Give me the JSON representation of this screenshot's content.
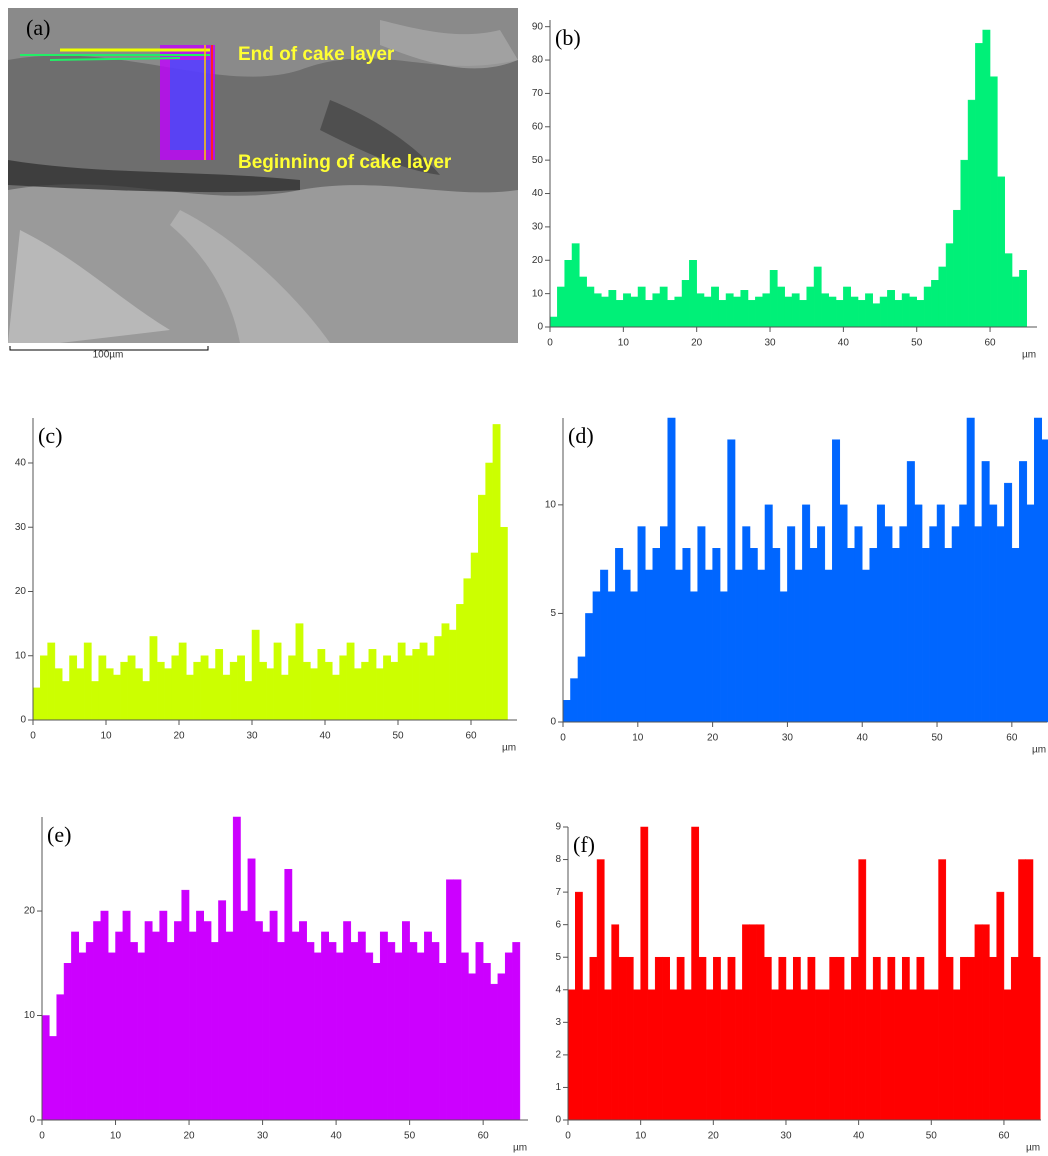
{
  "micrograph": {
    "label": "(a)",
    "annotations": [
      "End of cake layer",
      "Beginning of cake layer"
    ],
    "scale_bar": "100µm"
  },
  "chart_data": [
    {
      "type": "histogram",
      "title": "(b)",
      "x_label": "µm",
      "color": "#00f078",
      "bins": [
        0,
        1,
        2,
        3,
        4,
        5,
        6,
        7,
        8,
        9,
        10,
        11,
        12,
        13,
        14,
        15,
        16,
        17,
        18,
        19,
        20,
        21,
        22,
        23,
        24,
        25,
        26,
        27,
        28,
        29,
        30,
        31,
        32,
        33,
        34,
        35,
        36,
        37,
        38,
        39,
        40,
        41,
        42,
        43,
        44,
        45,
        46,
        47,
        48,
        49,
        50,
        51,
        52,
        53,
        54,
        55,
        56,
        57,
        58,
        59,
        60,
        61,
        62,
        63,
        64,
        65
      ],
      "values": [
        3,
        12,
        20,
        25,
        15,
        12,
        10,
        9,
        11,
        8,
        10,
        9,
        12,
        8,
        10,
        12,
        8,
        9,
        14,
        20,
        10,
        9,
        12,
        8,
        10,
        9,
        11,
        8,
        9,
        10,
        17,
        12,
        9,
        10,
        8,
        12,
        18,
        10,
        9,
        8,
        12,
        9,
        8,
        10,
        7,
        9,
        11,
        8,
        10,
        9,
        8,
        12,
        14,
        18,
        25,
        35,
        50,
        68,
        85,
        89,
        75,
        45,
        22,
        15,
        17
      ],
      "xlim": [
        0,
        66.4
      ],
      "xticks": [
        0,
        10,
        20,
        30,
        40,
        50,
        60
      ],
      "ylim": [
        0,
        92
      ],
      "yticks": [
        0,
        10,
        20,
        30,
        40,
        50,
        60,
        70,
        80,
        90
      ]
    },
    {
      "type": "histogram",
      "title": "(c)",
      "x_label": "µm",
      "color": "#ccff00",
      "bins": [
        0,
        1,
        2,
        3,
        4,
        5,
        6,
        7,
        8,
        9,
        10,
        11,
        12,
        13,
        14,
        15,
        16,
        17,
        18,
        19,
        20,
        21,
        22,
        23,
        24,
        25,
        26,
        27,
        28,
        29,
        30,
        31,
        32,
        33,
        34,
        35,
        36,
        37,
        38,
        39,
        40,
        41,
        42,
        43,
        44,
        45,
        46,
        47,
        48,
        49,
        50,
        51,
        52,
        53,
        54,
        55,
        56,
        57,
        58,
        59,
        60,
        61,
        62,
        63,
        64,
        65
      ],
      "values": [
        5,
        10,
        12,
        8,
        6,
        10,
        8,
        12,
        6,
        10,
        8,
        7,
        9,
        10,
        8,
        6,
        13,
        9,
        8,
        10,
        12,
        7,
        9,
        10,
        8,
        11,
        7,
        9,
        10,
        6,
        14,
        9,
        8,
        12,
        7,
        10,
        15,
        9,
        8,
        11,
        9,
        7,
        10,
        12,
        8,
        9,
        11,
        8,
        10,
        9,
        12,
        10,
        11,
        12,
        10,
        13,
        15,
        14,
        18,
        22,
        26,
        35,
        40,
        46,
        30
      ],
      "xlim": [
        0,
        66.3
      ],
      "xticks": [
        0,
        10,
        20,
        30,
        40,
        50,
        60
      ],
      "ylim": [
        0,
        47
      ],
      "yticks": [
        0,
        10,
        20,
        30,
        40
      ]
    },
    {
      "type": "histogram",
      "title": "(d)",
      "x_label": "µm",
      "color": "#0066ff",
      "bins": [
        0,
        1,
        2,
        3,
        4,
        5,
        6,
        7,
        8,
        9,
        10,
        11,
        12,
        13,
        14,
        15,
        16,
        17,
        18,
        19,
        20,
        21,
        22,
        23,
        24,
        25,
        26,
        27,
        28,
        29,
        30,
        31,
        32,
        33,
        34,
        35,
        36,
        37,
        38,
        39,
        40,
        41,
        42,
        43,
        44,
        45,
        46,
        47,
        48,
        49,
        50,
        51,
        52,
        53,
        54,
        55,
        56,
        57,
        58,
        59,
        60,
        61,
        62,
        63,
        64,
        65
      ],
      "values": [
        1,
        2,
        3,
        5,
        6,
        7,
        6,
        8,
        7,
        6,
        9,
        7,
        8,
        9,
        14,
        7,
        8,
        6,
        9,
        7,
        8,
        6,
        13,
        7,
        9,
        8,
        7,
        10,
        8,
        6,
        9,
        7,
        10,
        8,
        9,
        7,
        13,
        10,
        8,
        9,
        7,
        8,
        10,
        9,
        8,
        9,
        12,
        10,
        8,
        9,
        10,
        8,
        9,
        10,
        14,
        9,
        12,
        10,
        9,
        11,
        8,
        12,
        10,
        14,
        13
      ],
      "xlim": [
        0,
        64.7
      ],
      "xticks": [
        0,
        10,
        20,
        30,
        40,
        50,
        60
      ],
      "ylim": [
        0,
        14
      ],
      "yticks": [
        0,
        5,
        10
      ]
    },
    {
      "type": "histogram",
      "title": "(e)",
      "x_label": "µm",
      "color": "#cc00ff",
      "bins": [
        0,
        1,
        2,
        3,
        4,
        5,
        6,
        7,
        8,
        9,
        10,
        11,
        12,
        13,
        14,
        15,
        16,
        17,
        18,
        19,
        20,
        21,
        22,
        23,
        24,
        25,
        26,
        27,
        28,
        29,
        30,
        31,
        32,
        33,
        34,
        35,
        36,
        37,
        38,
        39,
        40,
        41,
        42,
        43,
        44,
        45,
        46,
        47,
        48,
        49,
        50,
        51,
        52,
        53,
        54,
        55,
        56,
        57,
        58,
        59,
        60,
        61,
        62,
        63,
        64,
        65
      ],
      "values": [
        10,
        8,
        12,
        15,
        18,
        16,
        17,
        19,
        20,
        16,
        18,
        20,
        17,
        16,
        19,
        18,
        20,
        17,
        19,
        22,
        18,
        20,
        19,
        17,
        21,
        18,
        29,
        20,
        25,
        19,
        18,
        20,
        17,
        24,
        18,
        19,
        17,
        16,
        18,
        17,
        16,
        19,
        17,
        18,
        16,
        15,
        18,
        17,
        16,
        19,
        17,
        16,
        18,
        17,
        15,
        23,
        23,
        16,
        14,
        17,
        15,
        13,
        14,
        16,
        17
      ],
      "xlim": [
        0,
        66.1
      ],
      "xticks": [
        0,
        10,
        20,
        30,
        40,
        50,
        60
      ],
      "ylim": [
        0,
        29
      ],
      "yticks": [
        0,
        10,
        20
      ]
    },
    {
      "type": "histogram",
      "title": "(f)",
      "x_label": "µm",
      "color": "#ff0000",
      "bins": [
        0,
        1,
        2,
        3,
        4,
        5,
        6,
        7,
        8,
        9,
        10,
        11,
        12,
        13,
        14,
        15,
        16,
        17,
        18,
        19,
        20,
        21,
        22,
        23,
        24,
        25,
        26,
        27,
        28,
        29,
        30,
        31,
        32,
        33,
        34,
        35,
        36,
        37,
        38,
        39,
        40,
        41,
        42,
        43,
        44,
        45,
        46,
        47,
        48,
        49,
        50,
        51,
        52,
        53,
        54,
        55,
        56,
        57,
        58,
        59,
        60,
        61,
        62,
        63,
        64,
        65
      ],
      "values": [
        4,
        7,
        4,
        5,
        8,
        4,
        6,
        5,
        5,
        4,
        9,
        4,
        5,
        5,
        4,
        5,
        4,
        9,
        5,
        4,
        5,
        4,
        5,
        4,
        6,
        6,
        6,
        5,
        4,
        5,
        4,
        5,
        4,
        5,
        4,
        4,
        5,
        5,
        4,
        5,
        8,
        4,
        5,
        4,
        5,
        4,
        5,
        4,
        5,
        4,
        4,
        8,
        5,
        4,
        5,
        5,
        6,
        6,
        5,
        7,
        4,
        5,
        8,
        8,
        5
      ],
      "xlim": [
        0,
        65.1
      ],
      "xticks": [
        0,
        10,
        20,
        30,
        40,
        50,
        60
      ],
      "ylim": [
        0,
        9
      ],
      "yticks": [
        0,
        1,
        2,
        3,
        4,
        5,
        6,
        7,
        8,
        9
      ]
    }
  ]
}
